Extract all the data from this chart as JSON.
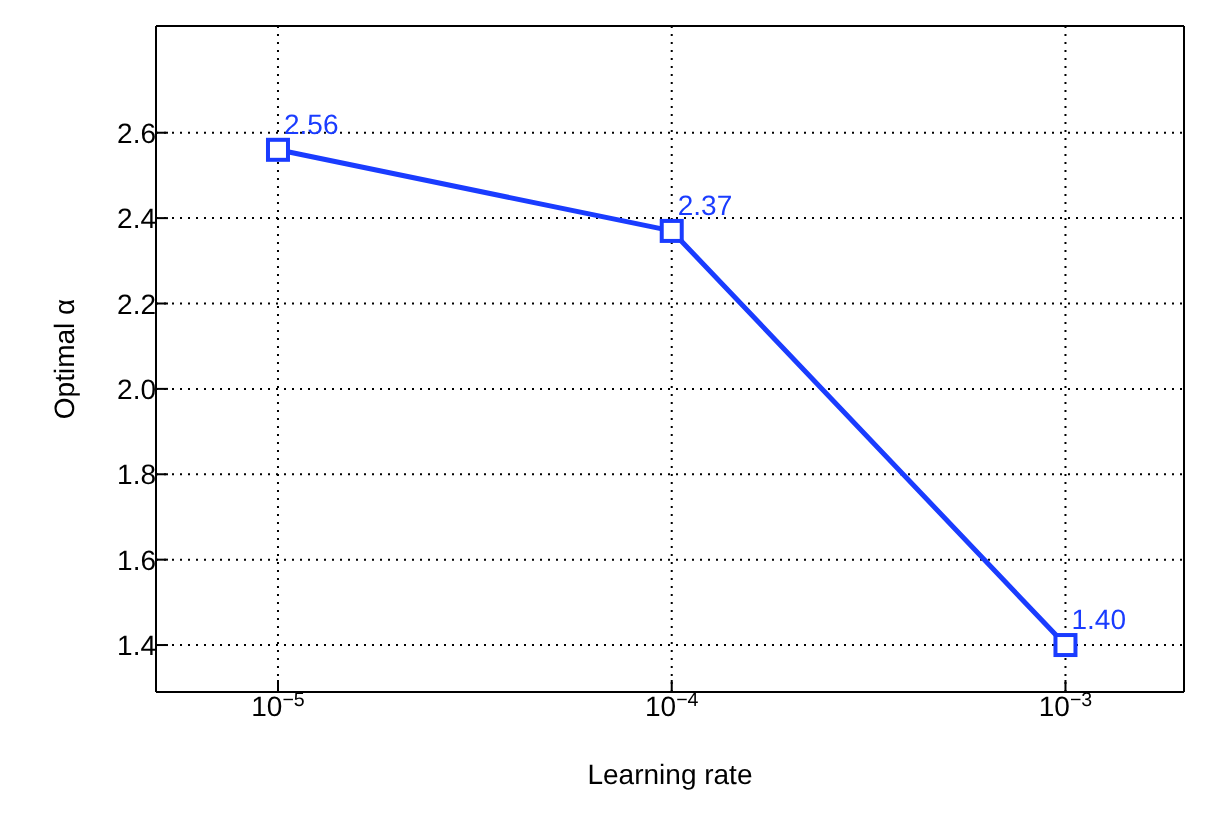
{
  "chart_data": {
    "type": "line",
    "xlabel": "Learning rate",
    "ylabel": "Optimal α",
    "x": [
      1e-05,
      0.0001,
      0.001
    ],
    "series": [
      {
        "color": "#1a3cff",
        "values": [
          2.56,
          2.37,
          1.4
        ],
        "value_labels": [
          "2.56",
          "2.37",
          "1.40"
        ]
      }
    ],
    "log": "x",
    "xlim": [
      4.9e-06,
      0.002
    ],
    "xticks": [
      {
        "value": 1e-05,
        "label": "10$^{−5}$"
      },
      {
        "value": 0.0001,
        "label": "10$^{−4}$"
      },
      {
        "value": 0.001,
        "label": "10$^{−3}$"
      }
    ],
    "ylim": [
      1.29,
      2.85
    ],
    "yticks": [
      1.4,
      1.6,
      1.8,
      {
        "value": 2,
        "label": "2.0"
      },
      2.2,
      2.4,
      2.6
    ],
    "grid": true,
    "marker": "square",
    "line_style": "solid"
  }
}
